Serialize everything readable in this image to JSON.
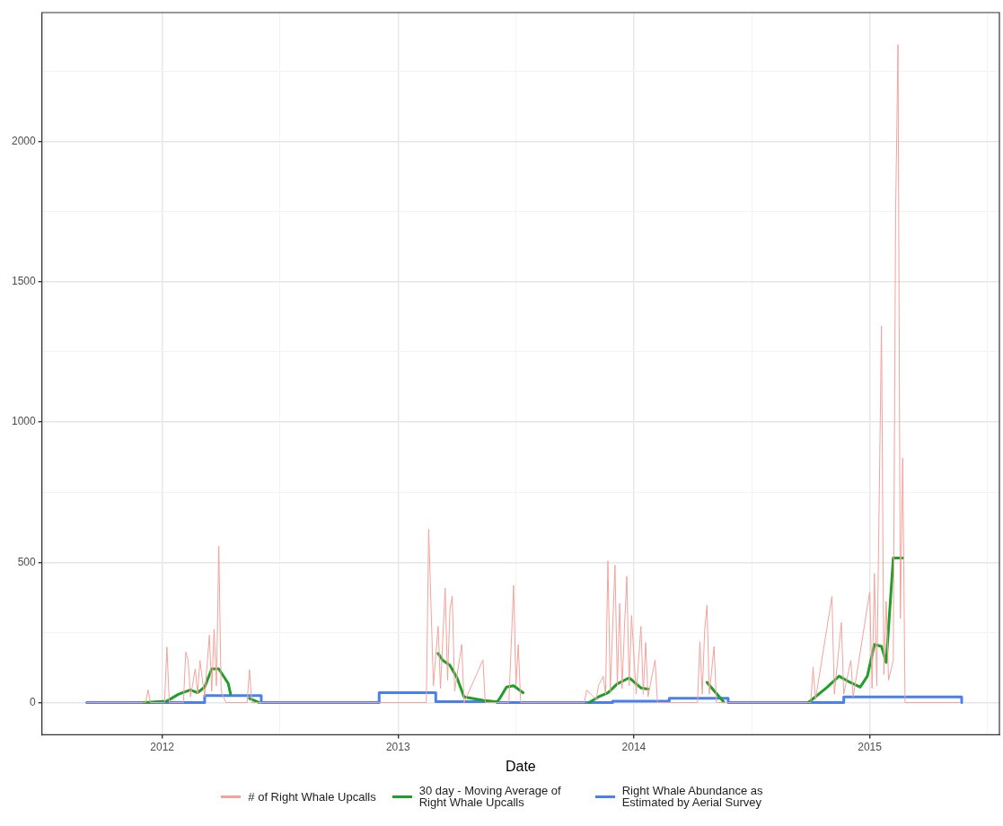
{
  "chart_data": {
    "type": "line",
    "xlabel": "Date",
    "xlim": [
      2011.49,
      2015.55
    ],
    "xticks": [
      {
        "value": 2011.5,
        "label": null
      },
      2012,
      {
        "value": 2012.5,
        "label": null
      },
      2013,
      {
        "value": 2013.5,
        "label": null
      },
      2014,
      {
        "value": 2014.5,
        "label": null
      },
      2015,
      {
        "value": 2015.5,
        "label": null
      }
    ],
    "ylim": [
      -115,
      2460
    ],
    "yticks": [
      0,
      {
        "value": 250,
        "label": null
      },
      500,
      {
        "value": 750,
        "label": null
      },
      1000,
      {
        "value": 1250,
        "label": null
      },
      1500,
      {
        "value": 1750,
        "label": null
      },
      2000,
      {
        "value": 2250,
        "label": null
      }
    ],
    "grid": true,
    "legend": "bottom",
    "series": [
      {
        "name": "# of Right Whale Upcalls",
        "type": "line",
        "color": "#f4a29c",
        "x": [
          2011.68,
          2011.93,
          2011.94,
          2011.95,
          2012.01,
          2012.02,
          2012.03,
          2012.09,
          2012.1,
          2012.11,
          2012.12,
          2012.14,
          2012.15,
          2012.16,
          2012.18,
          2012.2,
          2012.21,
          2012.22,
          2012.23,
          2012.24,
          2012.25,
          2012.27,
          2012.36,
          2012.37,
          2012.38,
          2013.12,
          2013.13,
          2013.15,
          2013.17,
          2013.18,
          2013.2,
          2013.21,
          2013.22,
          2013.23,
          2013.24,
          2013.27,
          2013.28,
          2013.36,
          2013.37,
          2013.47,
          2013.49,
          2013.5,
          2013.51,
          2013.52,
          2013.79,
          2013.8,
          2013.84,
          2013.85,
          2013.87,
          2013.88,
          2013.89,
          2013.9,
          2013.92,
          2013.93,
          2013.94,
          2013.95,
          2013.96,
          2013.97,
          2013.98,
          2013.99,
          2014.01,
          2014.03,
          2014.04,
          2014.05,
          2014.06,
          2014.09,
          2014.1,
          2014.27,
          2014.28,
          2014.29,
          2014.3,
          2014.31,
          2014.32,
          2014.34,
          2014.35,
          2014.75,
          2014.76,
          2014.77,
          2014.84,
          2014.85,
          2014.88,
          2014.89,
          2014.92,
          2014.93,
          2015.0,
          2015.01,
          2015.02,
          2015.03,
          2015.05,
          2015.06,
          2015.07,
          2015.08,
          2015.1,
          2015.11,
          2015.12,
          2015.13,
          2015.14,
          2015.15,
          2015.38
        ],
        "values": [
          0,
          0,
          45,
          0,
          0,
          198,
          0,
          0,
          180,
          150,
          20,
          120,
          30,
          150,
          20,
          240,
          40,
          262,
          60,
          557,
          40,
          0,
          0,
          117,
          0,
          0,
          618,
          60,
          272,
          50,
          408,
          80,
          330,
          380,
          40,
          207,
          0,
          152,
          0,
          0,
          418,
          60,
          207,
          0,
          0,
          45,
          10,
          60,
          94,
          30,
          505,
          40,
          490,
          60,
          353,
          50,
          265,
          450,
          60,
          310,
          30,
          272,
          30,
          214,
          20,
          152,
          0,
          0,
          217,
          30,
          256,
          347,
          30,
          200,
          0,
          0,
          126,
          10,
          379,
          30,
          285,
          30,
          150,
          20,
          395,
          50,
          460,
          60,
          1342,
          100,
          360,
          80,
          150,
          1747,
          2346,
          300,
          872,
          0,
          0
        ]
      },
      {
        "name": "30 day - Moving Average of Right Whale Upcalls",
        "type": "line",
        "color": "#1f9e2a",
        "x": [
          2011.92,
          2012.02,
          2012.07,
          2012.12,
          2012.15,
          2012.18,
          2012.21,
          2012.24,
          2012.28,
          2012.29,
          2012.3,
          2012.37,
          2012.41,
          2012.42,
          2013.17,
          2013.19,
          2013.22,
          2013.25,
          2013.28,
          2013.36,
          2013.42,
          2013.43,
          2013.46,
          2013.49,
          2013.53,
          2013.54,
          2013.81,
          2013.85,
          2013.89,
          2013.93,
          2013.98,
          2014.03,
          2014.06,
          2014.07,
          2014.31,
          2014.33,
          2014.38,
          2014.39,
          2014.74,
          2014.82,
          2014.87,
          2014.91,
          2014.96,
          2014.99,
          2015.02,
          2015.05,
          2015.07,
          2015.1,
          2015.14
        ],
        "values": [
          0,
          5,
          30,
          45,
          35,
          55,
          120,
          120,
          68,
          30,
          null,
          15,
          0,
          null,
          175,
          150,
          133,
          88,
          20,
          8,
          2,
          13,
          55,
          60,
          35,
          null,
          0,
          20,
          35,
          67,
          88,
          52,
          48,
          null,
          72,
          52,
          3,
          null,
          0,
          55,
          94,
          75,
          55,
          94,
          207,
          200,
          143,
          515,
          515
        ]
      },
      {
        "name": "Right Whale Abundance as Estimated by Aerial Survey",
        "type": "step",
        "color": "#4a7ff0",
        "x": [
          2011.68,
          2012.18,
          2012.42,
          2012.92,
          2013.16,
          2013.42,
          2013.91,
          2014.15,
          2014.4,
          2014.89,
          2015.39
        ],
        "values": [
          0,
          25,
          0,
          35,
          3,
          0,
          5,
          15,
          0,
          20,
          0
        ]
      }
    ]
  }
}
